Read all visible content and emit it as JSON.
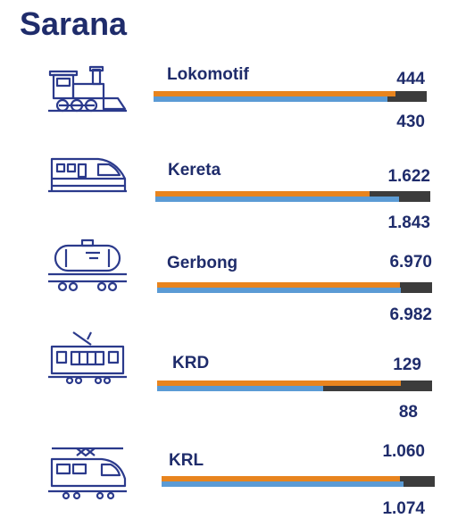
{
  "title": "Sarana",
  "colors": {
    "title": "#1f2c6b",
    "bar_2023": "#e8841e",
    "bar_2024": "#5b9bd5",
    "track": "#3c3c3c",
    "icon": "#2b3a8c"
  },
  "chart_data": {
    "type": "bar",
    "title": "Sarana",
    "categories": [
      "Lokomotif",
      "Kereta",
      "Gerbong",
      "KRD",
      "KRL"
    ],
    "series": [
      {
        "values": [
          444,
          1622,
          6970,
          129,
          1060
        ]
      },
      {
        "values": [
          430,
          1843,
          6982,
          88,
          1074
        ]
      }
    ],
    "top_labels": [
      "444",
      "1.622",
      "6.970",
      "129",
      "1.060"
    ],
    "bottom_labels": [
      "430",
      "1.843",
      "6.982",
      "88",
      "1.074"
    ],
    "icons": [
      "locomotive-icon",
      "train-car-icon",
      "tank-wagon-icon",
      "diesel-railcar-icon",
      "electric-train-icon"
    ]
  }
}
